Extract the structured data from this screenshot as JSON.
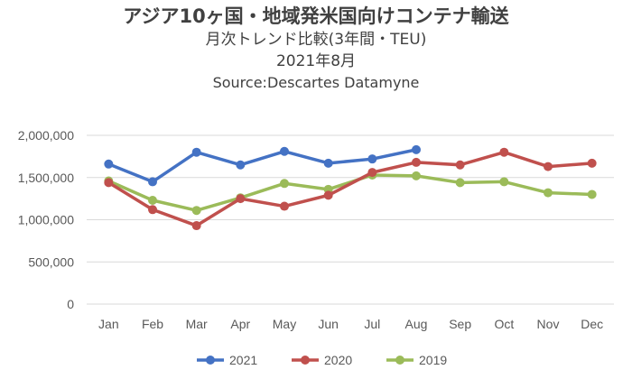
{
  "chart_data": {
    "type": "line",
    "title": "アジア10ヶ国・地域発米国向けコンテナ輸送",
    "subtitle": "月次トレンド比較(3年間・TEU)",
    "period": "2021年8月",
    "source": "Source:Descartes Datamyne",
    "categories": [
      "Jan",
      "Feb",
      "Mar",
      "Apr",
      "May",
      "Jun",
      "Jul",
      "Aug",
      "Sep",
      "Oct",
      "Nov",
      "Dec"
    ],
    "ylim": [
      0,
      2000000
    ],
    "yticks": [
      0,
      500000,
      1000000,
      1500000,
      2000000
    ],
    "ytick_labels": [
      "0",
      "500,000",
      "1,000,000",
      "1,500,000",
      "2,000,000"
    ],
    "grid": true,
    "legend_position": "bottom",
    "series": [
      {
        "name": "2021",
        "color": "#4472C4",
        "values": [
          1660000,
          1450000,
          1800000,
          1650000,
          1810000,
          1670000,
          1720000,
          1830000,
          null,
          null,
          null,
          null
        ]
      },
      {
        "name": "2020",
        "color": "#C0504D",
        "values": [
          1440000,
          1120000,
          930000,
          1250000,
          1160000,
          1290000,
          1560000,
          1680000,
          1650000,
          1800000,
          1630000,
          1670000
        ]
      },
      {
        "name": "2019",
        "color": "#9BBB59",
        "values": [
          1460000,
          1230000,
          1110000,
          1260000,
          1430000,
          1360000,
          1530000,
          1520000,
          1440000,
          1450000,
          1320000,
          1300000
        ]
      }
    ]
  }
}
